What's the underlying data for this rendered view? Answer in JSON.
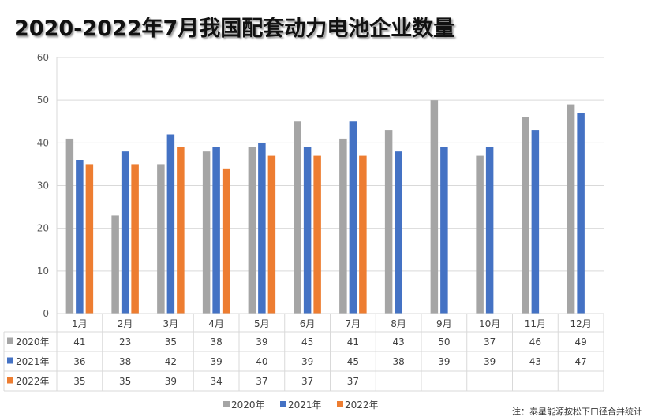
{
  "chart_data": {
    "type": "bar",
    "title": "2020-2022年7月我国配套动力电池企业数量",
    "categories": [
      "1月",
      "2月",
      "3月",
      "4月",
      "5月",
      "6月",
      "7月",
      "8月",
      "9月",
      "10月",
      "11月",
      "12月"
    ],
    "series": [
      {
        "name": "2020年",
        "color": "#A5A5A5",
        "values": [
          41,
          23,
          35,
          38,
          39,
          45,
          41,
          43,
          50,
          37,
          46,
          49
        ]
      },
      {
        "name": "2021年",
        "color": "#4472C4",
        "values": [
          36,
          38,
          42,
          39,
          40,
          39,
          45,
          38,
          39,
          39,
          43,
          47
        ]
      },
      {
        "name": "2022年",
        "color": "#ED7D31",
        "values": [
          35,
          35,
          39,
          34,
          37,
          37,
          37,
          null,
          null,
          null,
          null,
          null
        ]
      }
    ],
    "ylim": [
      0,
      60
    ],
    "yticks": [
      0,
      10,
      20,
      30,
      40,
      50,
      60
    ],
    "grid": true,
    "legend": "bottom",
    "data_table": true
  },
  "note": "注：泰星能源按松下口径合并统计"
}
